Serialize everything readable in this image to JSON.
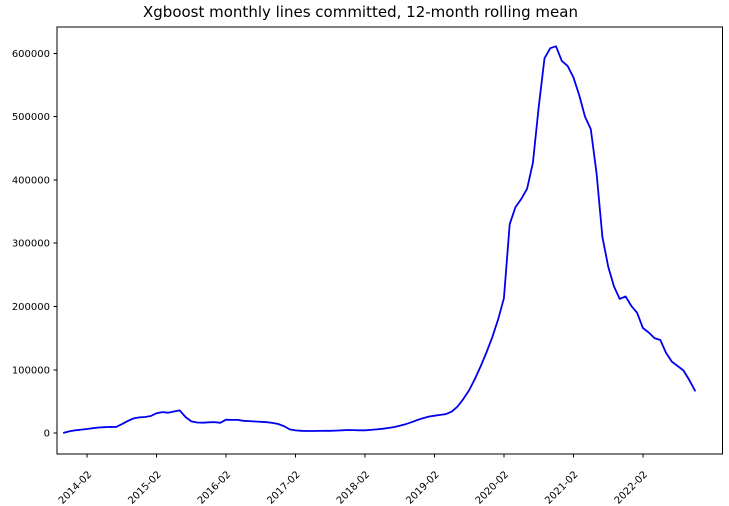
{
  "title": "Xgboost monthly lines committed, 12-month rolling mean",
  "chart_data": {
    "type": "line",
    "title": "Xgboost monthly lines committed, 12-month rolling mean",
    "xlabel": "",
    "ylabel": "",
    "grid": false,
    "legend": null,
    "line_color": "#0000ee",
    "axis_color": "#000000",
    "background_color": "#ffffff",
    "ylim": [
      -33000,
      641500
    ],
    "y_ticks": [
      0,
      100000,
      200000,
      300000,
      400000,
      500000,
      600000
    ],
    "y_tick_labels": [
      "0",
      "100000",
      "200000",
      "300000",
      "400000",
      "500000",
      "600000"
    ],
    "x_tick_labels": [
      "2014-02",
      "2015-02",
      "2016-02",
      "2017-02",
      "2018-02",
      "2019-02",
      "2020-02",
      "2021-02",
      "2022-02"
    ],
    "x": [
      "2013-10",
      "2013-11",
      "2013-12",
      "2014-01",
      "2014-02",
      "2014-03",
      "2014-04",
      "2014-05",
      "2014-06",
      "2014-07",
      "2014-08",
      "2014-09",
      "2014-10",
      "2014-11",
      "2014-12",
      "2015-01",
      "2015-02",
      "2015-03",
      "2015-04",
      "2015-05",
      "2015-06",
      "2015-07",
      "2015-08",
      "2015-09",
      "2015-10",
      "2015-11",
      "2015-12",
      "2016-01",
      "2016-02",
      "2016-03",
      "2016-04",
      "2016-05",
      "2016-06",
      "2016-07",
      "2016-08",
      "2016-09",
      "2016-10",
      "2016-11",
      "2016-12",
      "2017-01",
      "2017-02",
      "2017-03",
      "2017-04",
      "2017-05",
      "2017-06",
      "2017-07",
      "2017-08",
      "2017-09",
      "2017-10",
      "2017-11",
      "2017-12",
      "2018-01",
      "2018-02",
      "2018-03",
      "2018-04",
      "2018-05",
      "2018-06",
      "2018-07",
      "2018-08",
      "2018-09",
      "2018-10",
      "2018-11",
      "2018-12",
      "2019-01",
      "2019-02",
      "2019-03",
      "2019-04",
      "2019-05",
      "2019-06",
      "2019-07",
      "2019-08",
      "2019-09",
      "2019-10",
      "2019-11",
      "2019-12",
      "2020-01",
      "2020-02",
      "2020-03",
      "2020-04",
      "2020-05",
      "2020-06",
      "2020-07",
      "2020-08",
      "2020-09",
      "2020-10",
      "2020-11",
      "2020-12",
      "2021-01",
      "2021-02",
      "2021-03",
      "2021-04",
      "2021-05",
      "2021-06",
      "2021-07",
      "2021-08",
      "2021-09",
      "2021-10",
      "2021-11",
      "2021-12",
      "2022-01",
      "2022-02",
      "2022-03",
      "2022-04",
      "2022-05",
      "2022-06",
      "2022-07",
      "2022-08",
      "2022-09",
      "2022-10",
      "2022-11"
    ],
    "values": [
      500,
      2800,
      4500,
      5500,
      6500,
      7800,
      8800,
      9400,
      9800,
      9600,
      14000,
      19000,
      23000,
      24800,
      25400,
      27000,
      31500,
      33200,
      32200,
      34200,
      35800,
      25500,
      18500,
      16800,
      16500,
      17000,
      17400,
      16300,
      21200,
      20800,
      20800,
      19400,
      19000,
      18400,
      17900,
      17300,
      16100,
      14400,
      11000,
      5800,
      4300,
      3600,
      3400,
      3400,
      3500,
      3600,
      3600,
      3900,
      4500,
      4900,
      4700,
      4500,
      4400,
      5000,
      5800,
      6800,
      8000,
      9500,
      11500,
      14000,
      17000,
      20500,
      23500,
      26000,
      27500,
      28800,
      30000,
      34000,
      42000,
      54000,
      68000,
      86000,
      106000,
      128000,
      152000,
      180000,
      213000,
      330000,
      357000,
      370000,
      386000,
      427000,
      515000,
      592000,
      608000,
      611000,
      588000,
      580000,
      562000,
      534000,
      500000,
      480000,
      410000,
      310000,
      263000,
      232000,
      212000,
      216000,
      201000,
      190000,
      166000,
      159000,
      150000,
      147000,
      127000,
      113000,
      106000,
      99000,
      84000,
      67000
    ]
  }
}
